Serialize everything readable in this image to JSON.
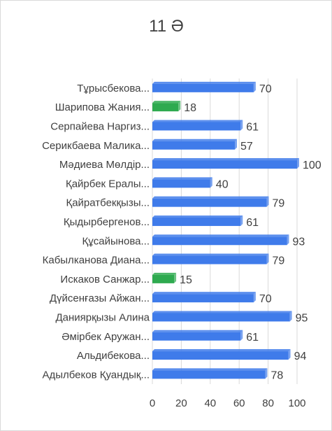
{
  "chart_data": {
    "type": "bar",
    "orientation": "horizontal",
    "title": "11 Ә",
    "xlabel": "",
    "ylabel": "",
    "xlim": [
      0,
      100
    ],
    "xticks": [
      0,
      20,
      40,
      60,
      80,
      100
    ],
    "grid": true,
    "legend": "none",
    "categories": [
      "Адылбеков Қуандық...",
      "Альдибекова...",
      "Әмірбек Аружан...",
      "Даниярқызы Алина",
      "Дүйсенғазы Айжан...",
      "Искаков Санжар...",
      "Кабылканова Диана...",
      "Құсайынова...",
      "Қыдырбергенов...",
      "Қайратбекқызы...",
      "Қайрбек Ералы...",
      "Мәдиева Мөлдір...",
      "Серикбаева Малика...",
      "Серпайева Наргиз...",
      "Шарипова Жания...",
      "Тұрысбекова..."
    ],
    "values": [
      78,
      94,
      61,
      95,
      70,
      15,
      79,
      93,
      61,
      79,
      40,
      100,
      57,
      61,
      18,
      70
    ],
    "colors": {
      "default": "#3F7BEA",
      "highlight": "#2EAA4F",
      "highlight_rule": "value < 20",
      "grid": "#d9d9d9",
      "text": "#404040"
    }
  }
}
